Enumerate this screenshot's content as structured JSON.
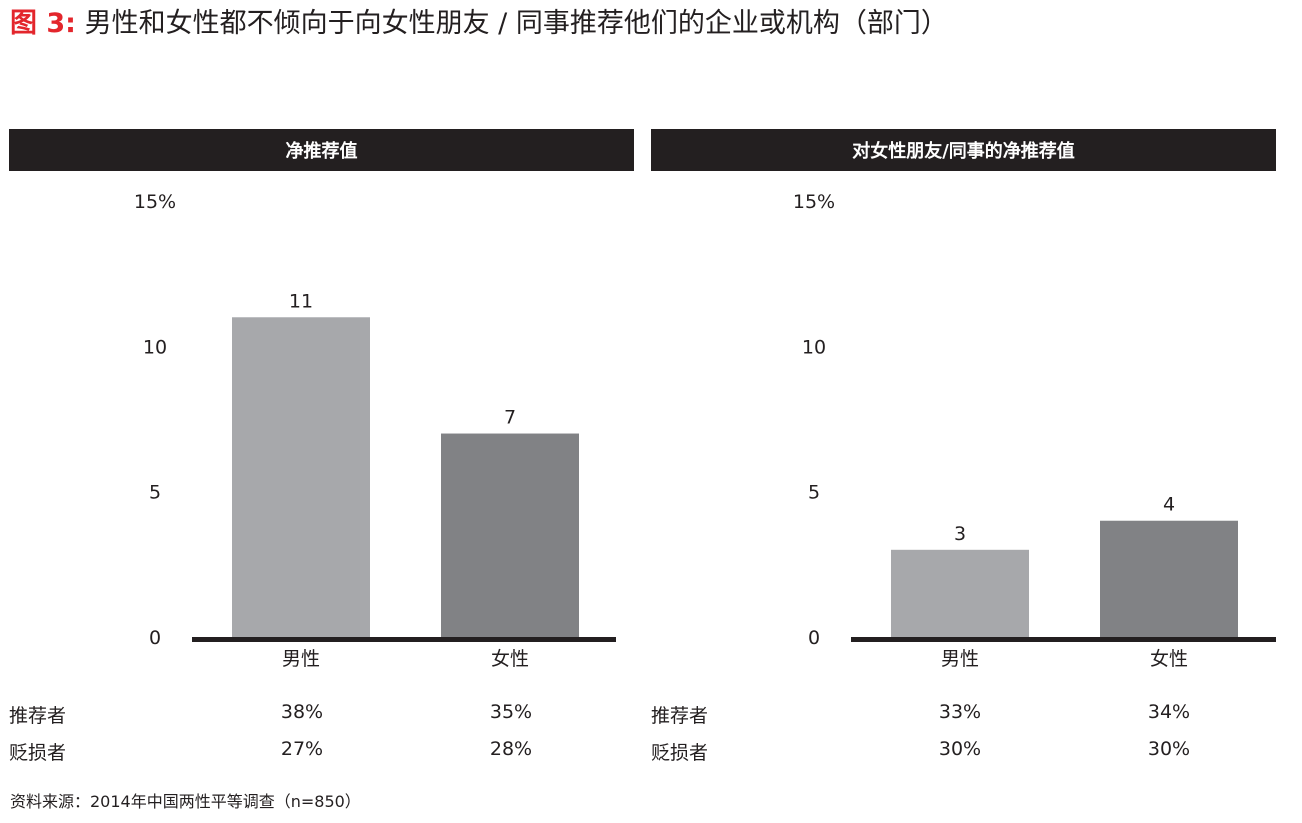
{
  "title": {
    "prefix": "图 3:",
    "text": "男性和女性都不倾向于向女性朋友 / 同事推荐他们的企业或机构（部门）"
  },
  "source": "资料来源：2014年中国两性平等调查（n=850）",
  "colors": {
    "header_bg": "#231f20",
    "bar_male": "#a7a8ab",
    "bar_female": "#818285",
    "axis": "#231f20",
    "title_accent": "#e3262c"
  },
  "chart_data": [
    {
      "type": "bar",
      "title": "净推荐值",
      "categories": [
        "男性",
        "女性"
      ],
      "values": [
        11,
        7
      ],
      "value_labels": [
        "11",
        "7"
      ],
      "y_ticks": [
        {
          "value": 0,
          "label": "0"
        },
        {
          "value": 5,
          "label": "5"
        },
        {
          "value": 10,
          "label": "10"
        },
        {
          "value": 15,
          "label": "15%"
        }
      ],
      "ylim": [
        0,
        15
      ],
      "grid": false,
      "stats": [
        {
          "label": "推荐者",
          "values": [
            "38%",
            "35%"
          ]
        },
        {
          "label": "贬损者",
          "values": [
            "27%",
            "28%"
          ]
        }
      ]
    },
    {
      "type": "bar",
      "title": "对女性朋友/同事的净推荐值",
      "categories": [
        "男性",
        "女性"
      ],
      "values": [
        3,
        4
      ],
      "value_labels": [
        "3",
        "4"
      ],
      "y_ticks": [
        {
          "value": 0,
          "label": "0"
        },
        {
          "value": 5,
          "label": "5"
        },
        {
          "value": 10,
          "label": "10"
        },
        {
          "value": 15,
          "label": "15%"
        }
      ],
      "ylim": [
        0,
        15
      ],
      "grid": false,
      "stats": [
        {
          "label": "推荐者",
          "values": [
            "33%",
            "34%"
          ]
        },
        {
          "label": "贬损者",
          "values": [
            "30%",
            "30%"
          ]
        }
      ]
    }
  ]
}
